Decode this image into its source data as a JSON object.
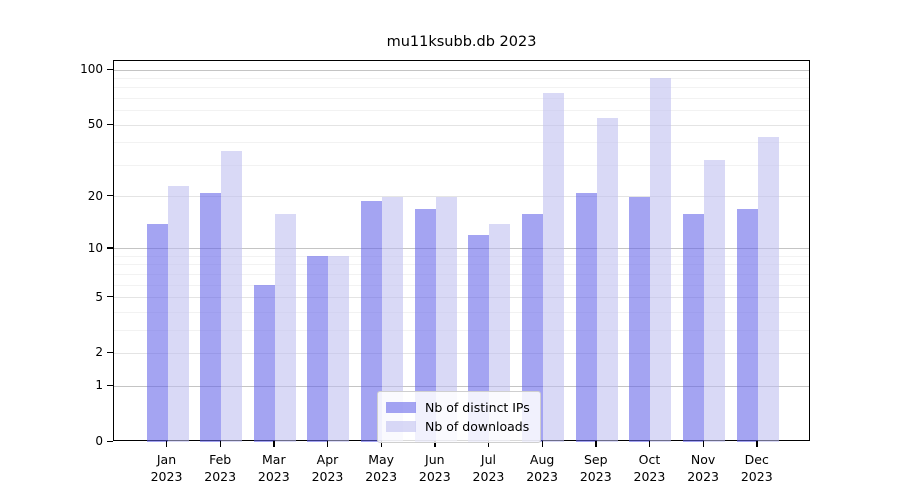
{
  "chart_data": {
    "type": "bar",
    "title": "mu11ksubb.db 2023",
    "categories": [
      "Jan",
      "Feb",
      "Mar",
      "Apr",
      "May",
      "Jun",
      "Jul",
      "Aug",
      "Sep",
      "Oct",
      "Nov",
      "Dec"
    ],
    "year_label": "2023",
    "series": [
      {
        "name": "Nb of distinct IPs",
        "color": "rgba(99,99,232,0.58)",
        "values": [
          14,
          21,
          6,
          9,
          19,
          17,
          12,
          16,
          21,
          20,
          16,
          17
        ]
      },
      {
        "name": "Nb of downloads",
        "color": "rgba(190,190,240,0.58)",
        "values": [
          23,
          36,
          16,
          9,
          20,
          20,
          14,
          75,
          55,
          91,
          32,
          43
        ]
      }
    ],
    "y_ticks": [
      0,
      1,
      2,
      5,
      10,
      20,
      50,
      100
    ],
    "y_scale": "symlog (position proportional to log10(1+value))",
    "ylim": [
      0,
      100
    ],
    "grid": true,
    "legend_position": "bottom-center"
  },
  "colors": {
    "grid_major": "#c4c4c4",
    "grid_mid": "#e4e4e4",
    "grid_minor": "#f2f2f2",
    "axis": "#000000",
    "background": "#ffffff"
  }
}
